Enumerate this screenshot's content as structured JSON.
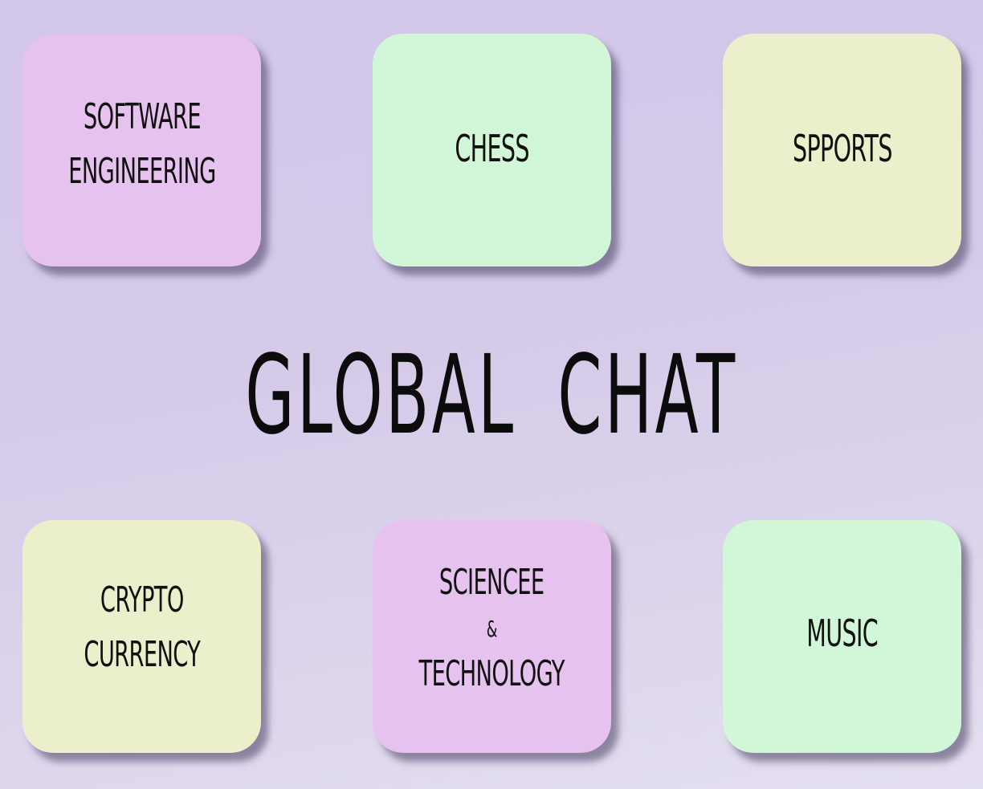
{
  "title": "GLOBAL CHAT",
  "tiles": [
    {
      "lines": [
        "SOFTWARE",
        "ENGINEERING"
      ],
      "color": "#e5c3ee"
    },
    {
      "lines": [
        "CHESS"
      ],
      "color": "#d2f7d8"
    },
    {
      "lines": [
        "SPPORTS"
      ],
      "color": "#ecefcc"
    },
    {
      "lines": [
        "CRYPTO",
        "CURRENCY"
      ],
      "color": "#ecefcc"
    },
    {
      "lines": [
        "SCIENCEE",
        "&",
        "TECHNOLOGY"
      ],
      "color": "#e5c3ee"
    },
    {
      "lines": [
        "MUSIC"
      ],
      "color": "#d2f7d8"
    }
  ],
  "colors": {
    "background": "#d5cbe9",
    "text": "#111111"
  }
}
